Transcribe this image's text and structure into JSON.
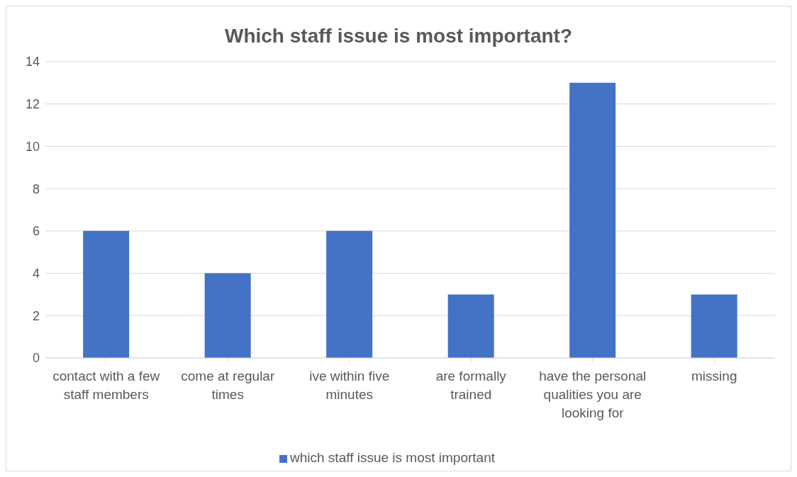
{
  "chart_data": {
    "type": "bar",
    "title": "Which staff issue is most important?",
    "categories": [
      "contact with a few staff members",
      "come at regular times",
      "ive within five minutes",
      "are formally trained",
      "have the personal qualities you are looking for",
      "missing"
    ],
    "series": [
      {
        "name": "which staff issue is most important",
        "color": "#4472c4",
        "values": [
          6,
          4,
          6,
          3,
          13,
          3
        ]
      }
    ],
    "ylim": [
      0,
      14
    ],
    "yticks": [
      0,
      2,
      4,
      6,
      8,
      10,
      12,
      14
    ],
    "grid": "y",
    "legend": "bottom"
  }
}
